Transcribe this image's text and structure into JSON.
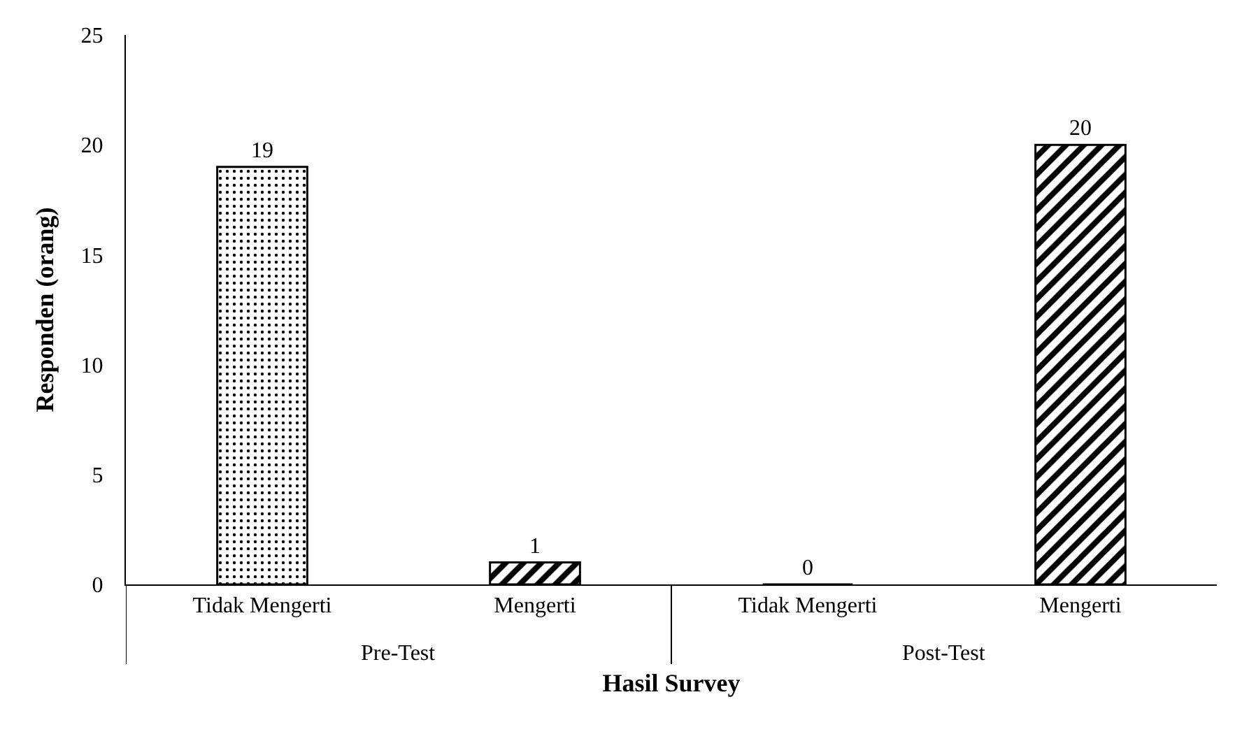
{
  "chart_data": {
    "type": "bar",
    "xlabel": "Hasil Survey",
    "ylabel": "Responden (orang)",
    "categories": [
      "Tidak Mengerti",
      "Mengerti",
      "Tidak Mengerti",
      "Mengerti"
    ],
    "series": [
      {
        "color": "#000000",
        "values": [
          19,
          null,
          0,
          null
        ]
      },
      {
        "color": "#000000",
        "values": [
          null,
          1,
          null,
          20
        ]
      }
    ],
    "ylim": [
      0,
      25
    ],
    "yticks": [
      0,
      5,
      10,
      15,
      20,
      25
    ],
    "grid": false,
    "data_labels": true,
    "annotations": [
      "Pre-Test",
      "Post-Test"
    ]
  }
}
